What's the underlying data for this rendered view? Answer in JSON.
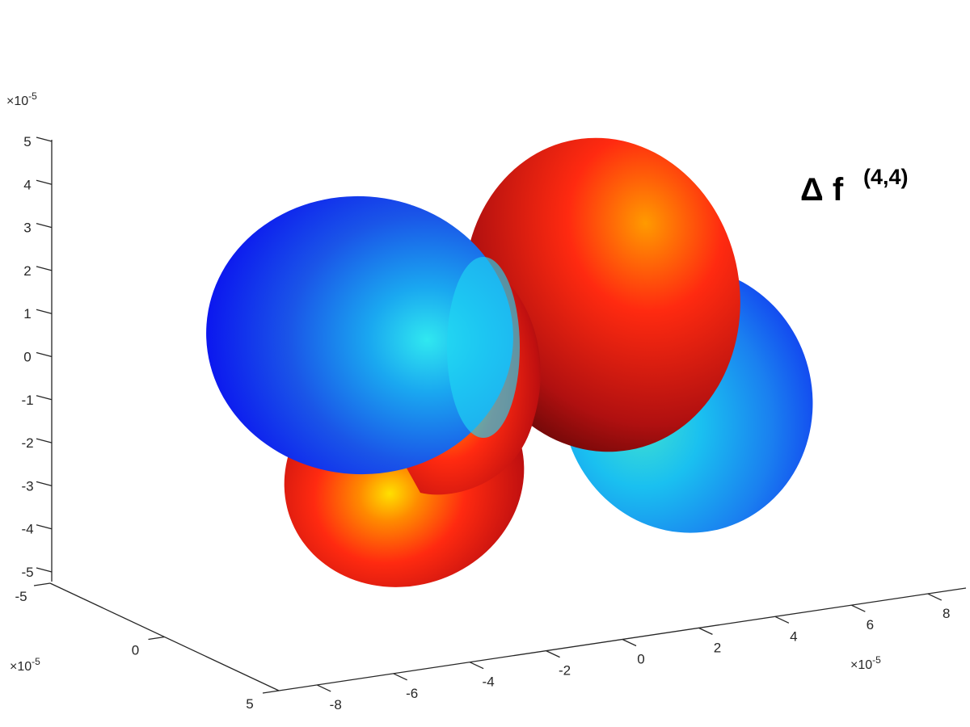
{
  "chart_data": {
    "type": "surface3d",
    "title": {
      "main": "Δ f",
      "superscript": "(4,4)"
    },
    "description_lobes": [
      {
        "sign": "positive",
        "color_scale": "hot",
        "orientation": "diagonal"
      },
      {
        "sign": "negative",
        "color_scale": "cold",
        "orientation": "diagonal"
      }
    ],
    "x_axis": {
      "ticks": [
        -8,
        -6,
        -4,
        -2,
        0,
        2,
        4,
        6,
        8
      ],
      "tick_labels": [
        "-8",
        "-6",
        "-4",
        "-2",
        "0",
        "2",
        "4",
        "6",
        "8"
      ],
      "exponent": "×10-5",
      "range": [
        -9,
        9
      ]
    },
    "y_axis": {
      "ticks": [
        -5,
        0,
        5
      ],
      "tick_labels": [
        "-5",
        "0",
        "5"
      ],
      "exponent": "×10-5",
      "range": [
        -5,
        5
      ]
    },
    "z_axis": {
      "ticks": [
        -5,
        -4,
        -3,
        -2,
        -1,
        0,
        1,
        2,
        3,
        4,
        5
      ],
      "tick_labels": [
        "-5",
        "-4",
        "-3",
        "-2",
        "-1",
        "0",
        "1",
        "2",
        "3",
        "4",
        "5"
      ],
      "exponent": "×10-5",
      "range": [
        -5,
        5
      ]
    },
    "colormap": "jet",
    "grid": false
  }
}
